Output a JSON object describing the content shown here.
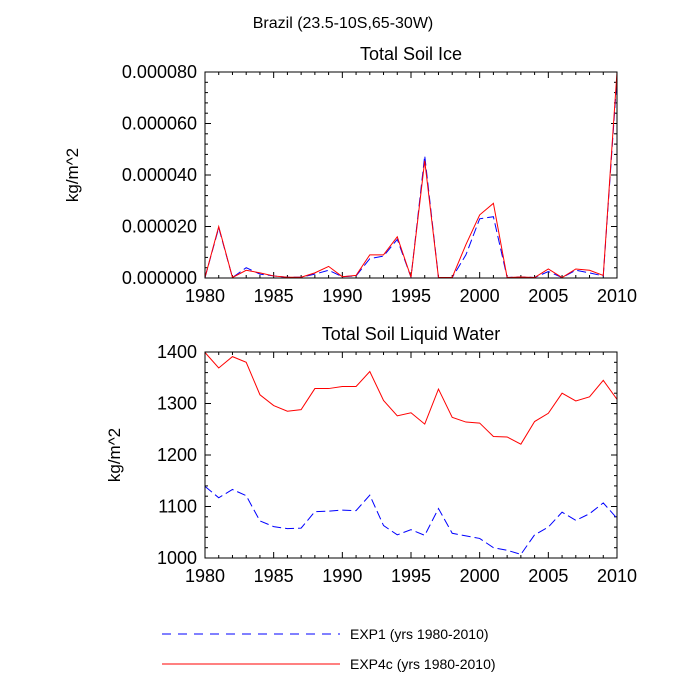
{
  "figure": {
    "title": "Brazil (23.5-10S,65-30W)"
  },
  "chart_data": [
    {
      "type": "line",
      "title": "Total Soil Ice",
      "xlabel": "",
      "ylabel": "kg/m^2",
      "xlim": [
        1980,
        2010
      ],
      "ylim": [
        0,
        8e-05
      ],
      "xticks": [
        1980,
        1985,
        1990,
        1995,
        2000,
        2005,
        2010
      ],
      "yticks": [
        0,
        2e-05,
        4e-05,
        6e-05,
        8e-05
      ],
      "ytick_labels": [
        "0.000000",
        "0.000020",
        "0.000040",
        "0.000060",
        "0.000080"
      ],
      "x": [
        1980,
        1981,
        1982,
        1983,
        1984,
        1985,
        1986,
        1987,
        1988,
        1989,
        1990,
        1991,
        1992,
        1993,
        1994,
        1995,
        1996,
        1997,
        1998,
        1999,
        2000,
        2001,
        2002,
        2003,
        2004,
        2005,
        2006,
        2007,
        2008,
        2009,
        2010
      ],
      "series": [
        {
          "name": "EXP1 (yrs 1980-2010)",
          "color": "#0000ff",
          "style": "dashed",
          "values": [
            2e-07,
            1.95e-05,
            2e-07,
            4e-06,
            1.5e-06,
            8e-07,
            3e-07,
            3e-07,
            1.5e-06,
            3e-06,
            5e-07,
            8e-07,
            7.5e-06,
            8.5e-06,
            1.5e-05,
            3e-07,
            4.75e-05,
            2e-07,
            2e-07,
            9e-06,
            2.3e-05,
            2.38e-05,
            2e-07,
            4e-07,
            2e-07,
            2.5e-06,
            2e-07,
            3e-06,
            2e-06,
            8e-07,
            7.8e-05
          ]
        },
        {
          "name": "EXP4c (yrs 1980-2010)",
          "color": "#ff0000",
          "style": "solid",
          "values": [
            2e-07,
            2e-05,
            2e-07,
            3e-06,
            2e-06,
            8e-07,
            3e-07,
            3e-07,
            2e-06,
            4.5e-06,
            5e-07,
            1e-06,
            9e-06,
            9e-06,
            1.6e-05,
            3e-07,
            4.55e-05,
            2e-07,
            2e-07,
            1.3e-05,
            2.45e-05,
            2.9e-05,
            2e-07,
            4e-07,
            2e-07,
            3.5e-06,
            2e-07,
            3.5e-06,
            3e-06,
            1e-06,
            8e-05
          ]
        }
      ]
    },
    {
      "type": "line",
      "title": "Total Soil Liquid Water",
      "xlabel": "",
      "ylabel": "kg/m^2",
      "xlim": [
        1980,
        2010
      ],
      "ylim": [
        1000,
        1400
      ],
      "xticks": [
        1980,
        1985,
        1990,
        1995,
        2000,
        2005,
        2010
      ],
      "yticks": [
        1000,
        1100,
        1200,
        1300,
        1400
      ],
      "ytick_labels": [
        "1000",
        "1100",
        "1200",
        "1300",
        "1400"
      ],
      "x": [
        1980,
        1981,
        1982,
        1983,
        1984,
        1985,
        1986,
        1987,
        1988,
        1989,
        1990,
        1991,
        1992,
        1993,
        1994,
        1995,
        1996,
        1997,
        1998,
        1999,
        2000,
        2001,
        2002,
        2003,
        2004,
        2005,
        2006,
        2007,
        2008,
        2009,
        2010
      ],
      "series": [
        {
          "name": "EXP1 (yrs 1980-2010)",
          "color": "#0000ff",
          "style": "dashed",
          "values": [
            1139,
            1117,
            1133,
            1121,
            1072,
            1061,
            1057,
            1058,
            1090,
            1091,
            1093,
            1092,
            1122,
            1063,
            1045,
            1055,
            1044,
            1096,
            1048,
            1043,
            1038,
            1020,
            1015,
            1007,
            1045,
            1060,
            1089,
            1073,
            1086,
            1107,
            1077
          ]
        },
        {
          "name": "EXP4c (yrs 1980-2010)",
          "color": "#ff0000",
          "style": "solid",
          "values": [
            1399,
            1369,
            1391,
            1380,
            1317,
            1296,
            1285,
            1288,
            1329,
            1329,
            1333,
            1333,
            1362,
            1306,
            1276,
            1282,
            1260,
            1328,
            1273,
            1264,
            1262,
            1236,
            1235,
            1221,
            1265,
            1281,
            1320,
            1305,
            1313,
            1345,
            1308
          ]
        }
      ]
    }
  ],
  "legend": {
    "entries": [
      {
        "label": "EXP1 (yrs 1980-2010)",
        "color": "#0000ff",
        "style": "dashed"
      },
      {
        "label": "EXP4c (yrs 1980-2010)",
        "color": "#ff0000",
        "style": "solid"
      }
    ]
  }
}
